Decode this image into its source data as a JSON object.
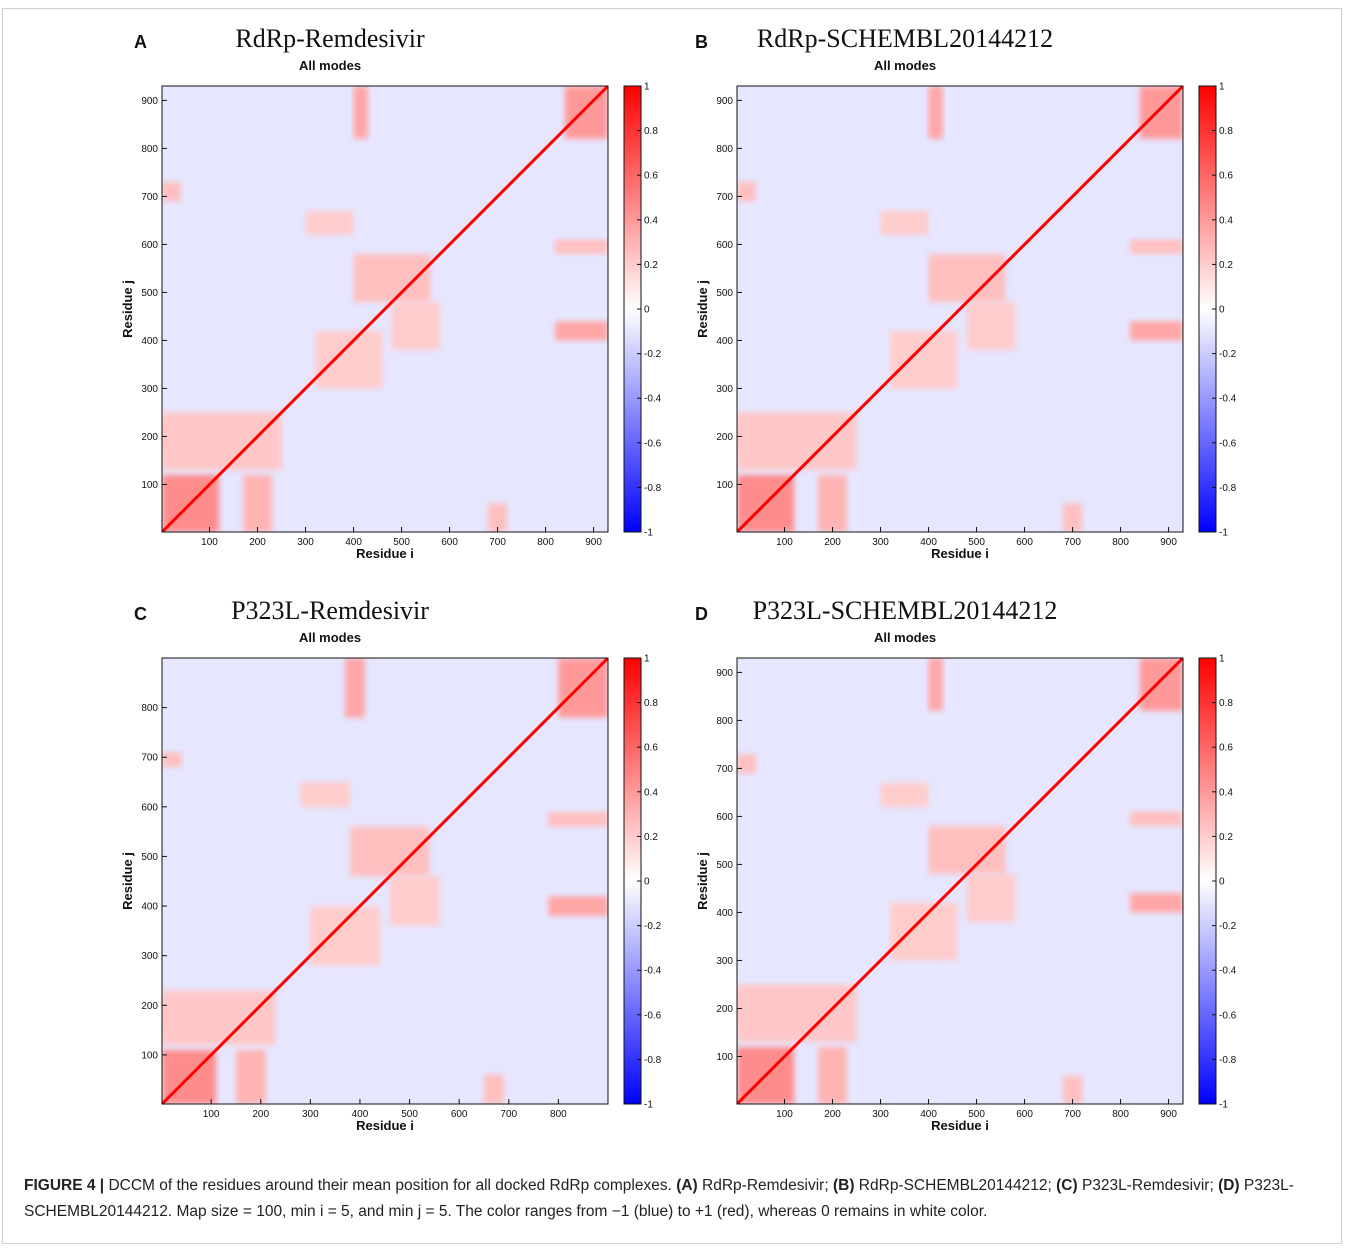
{
  "caption": {
    "figure_label": "FIGURE 4 |",
    "parts": [
      {
        "text": " DCCM of the residues around their mean position for all docked RdRp complexes. ",
        "bold": false
      },
      {
        "text": "(A)",
        "bold": true
      },
      {
        "text": " RdRp-Remdesivir; ",
        "bold": false
      },
      {
        "text": "(B)",
        "bold": true
      },
      {
        "text": " RdRp-SCHEMBL20144212; ",
        "bold": false
      },
      {
        "text": "(C)",
        "bold": true
      },
      {
        "text": " P323L-Remdesivir; ",
        "bold": false
      },
      {
        "text": "(D)",
        "bold": true
      },
      {
        "text": " P323L-SCHEMBL20144212. Map size = 100, min i = 5, and min j = 5. The color ranges from −1 (blue) to +1 (red), whereas 0 remains in white color.",
        "bold": false
      }
    ]
  },
  "colors": {
    "negative": "#0000ff",
    "zero": "#ffffff",
    "positive": "#ff0000"
  },
  "chart_data": [
    {
      "type": "heatmap",
      "panel_letter": "A",
      "title": "RdRp-Remdesivir",
      "subtitle": "All modes",
      "xlabel": "Residue i",
      "ylabel": "Residue j",
      "xlim": [
        1,
        930
      ],
      "ylim": [
        1,
        930
      ],
      "xticks": [
        100,
        200,
        300,
        400,
        500,
        600,
        700,
        800,
        900
      ],
      "yticks": [
        100,
        200,
        300,
        400,
        500,
        600,
        700,
        800,
        900
      ],
      "colorbar": {
        "range": [
          -1,
          1
        ],
        "ticks": [
          -1,
          -0.8,
          -0.6,
          -0.4,
          -0.2,
          0,
          0.2,
          0.4,
          0.6,
          0.8,
          1
        ],
        "tick_labels": [
          "-1",
          "-0.8",
          "-0.6",
          "-0.4",
          "-0.2",
          "0",
          "0.2",
          "0.4",
          "0.6",
          "0.8",
          "1"
        ]
      },
      "diagonal_value": 1,
      "background_value": -0.1,
      "red_regions": [
        {
          "i": [
            1,
            120
          ],
          "j": [
            1,
            120
          ],
          "v": 0.45
        },
        {
          "i": [
            170,
            230
          ],
          "j": [
            1,
            120
          ],
          "v": 0.3
        },
        {
          "i": [
            1,
            120
          ],
          "j": [
            170,
            230
          ],
          "v": 0.3
        },
        {
          "i": [
            1,
            250
          ],
          "j": [
            130,
            250
          ],
          "v": 0.22
        },
        {
          "i": [
            840,
            930
          ],
          "j": [
            820,
            930
          ],
          "v": 0.4
        },
        {
          "i": [
            400,
            430
          ],
          "j": [
            820,
            930
          ],
          "v": 0.35
        },
        {
          "i": [
            820,
            930
          ],
          "j": [
            400,
            440
          ],
          "v": 0.35
        },
        {
          "i": [
            400,
            560
          ],
          "j": [
            480,
            580
          ],
          "v": 0.25
        },
        {
          "i": [
            480,
            580
          ],
          "j": [
            380,
            480
          ],
          "v": 0.2
        },
        {
          "i": [
            320,
            460
          ],
          "j": [
            300,
            420
          ],
          "v": 0.2
        },
        {
          "i": [
            1,
            40
          ],
          "j": [
            690,
            730
          ],
          "v": 0.25
        },
        {
          "i": [
            820,
            930
          ],
          "j": [
            580,
            610
          ],
          "v": 0.25
        },
        {
          "i": [
            300,
            400
          ],
          "j": [
            620,
            670
          ],
          "v": 0.2
        },
        {
          "i": [
            680,
            720
          ],
          "j": [
            1,
            60
          ],
          "v": 0.25
        }
      ]
    },
    {
      "type": "heatmap",
      "panel_letter": "B",
      "title": "RdRp-SCHEMBL20144212",
      "subtitle": "All modes",
      "xlabel": "Residue i",
      "ylabel": "Residue j",
      "xlim": [
        1,
        930
      ],
      "ylim": [
        1,
        930
      ],
      "xticks": [
        100,
        200,
        300,
        400,
        500,
        600,
        700,
        800,
        900
      ],
      "yticks": [
        100,
        200,
        300,
        400,
        500,
        600,
        700,
        800,
        900
      ],
      "colorbar": {
        "range": [
          -1,
          1
        ],
        "ticks": [
          -1,
          -0.8,
          -0.6,
          -0.4,
          -0.2,
          0,
          0.2,
          0.4,
          0.6,
          0.8,
          1
        ],
        "tick_labels": [
          "-1",
          "-0.8",
          "-0.6",
          "-0.4",
          "-0.2",
          "0",
          "0.2",
          "0.4",
          "0.6",
          "0.8",
          "1"
        ]
      },
      "diagonal_value": 1,
      "background_value": -0.1,
      "red_regions": [
        {
          "i": [
            1,
            120
          ],
          "j": [
            1,
            120
          ],
          "v": 0.45
        },
        {
          "i": [
            170,
            230
          ],
          "j": [
            1,
            120
          ],
          "v": 0.3
        },
        {
          "i": [
            1,
            120
          ],
          "j": [
            170,
            230
          ],
          "v": 0.3
        },
        {
          "i": [
            1,
            250
          ],
          "j": [
            130,
            250
          ],
          "v": 0.22
        },
        {
          "i": [
            840,
            930
          ],
          "j": [
            820,
            930
          ],
          "v": 0.4
        },
        {
          "i": [
            400,
            430
          ],
          "j": [
            820,
            930
          ],
          "v": 0.35
        },
        {
          "i": [
            820,
            930
          ],
          "j": [
            400,
            440
          ],
          "v": 0.35
        },
        {
          "i": [
            400,
            560
          ],
          "j": [
            480,
            580
          ],
          "v": 0.25
        },
        {
          "i": [
            480,
            580
          ],
          "j": [
            380,
            480
          ],
          "v": 0.2
        },
        {
          "i": [
            320,
            460
          ],
          "j": [
            300,
            420
          ],
          "v": 0.2
        },
        {
          "i": [
            1,
            40
          ],
          "j": [
            690,
            730
          ],
          "v": 0.25
        },
        {
          "i": [
            820,
            930
          ],
          "j": [
            580,
            610
          ],
          "v": 0.25
        },
        {
          "i": [
            300,
            400
          ],
          "j": [
            620,
            670
          ],
          "v": 0.2
        },
        {
          "i": [
            680,
            720
          ],
          "j": [
            1,
            60
          ],
          "v": 0.25
        }
      ]
    },
    {
      "type": "heatmap",
      "panel_letter": "C",
      "title": "P323L-Remdesivir",
      "subtitle": "All modes",
      "xlabel": "Residue i",
      "ylabel": "Residue j",
      "xlim": [
        1,
        900
      ],
      "ylim": [
        1,
        900
      ],
      "xticks": [
        100,
        200,
        300,
        400,
        500,
        600,
        700,
        800
      ],
      "yticks": [
        100,
        200,
        300,
        400,
        500,
        600,
        700,
        800
      ],
      "colorbar": {
        "range": [
          -1,
          1
        ],
        "ticks": [
          -1,
          -0.8,
          -0.6,
          -0.4,
          -0.2,
          0,
          0.2,
          0.4,
          0.6,
          0.8,
          1
        ],
        "tick_labels": [
          "-1",
          "-0.8",
          "-0.6",
          "-0.4",
          "-0.2",
          "0",
          "0.2",
          "0.4",
          "0.6",
          "0.8",
          "1"
        ]
      },
      "diagonal_value": 1,
      "background_value": -0.1,
      "red_regions": [
        {
          "i": [
            1,
            110
          ],
          "j": [
            1,
            110
          ],
          "v": 0.45
        },
        {
          "i": [
            150,
            210
          ],
          "j": [
            1,
            110
          ],
          "v": 0.3
        },
        {
          "i": [
            1,
            110
          ],
          "j": [
            150,
            210
          ],
          "v": 0.3
        },
        {
          "i": [
            1,
            230
          ],
          "j": [
            120,
            230
          ],
          "v": 0.22
        },
        {
          "i": [
            800,
            900
          ],
          "j": [
            780,
            900
          ],
          "v": 0.4
        },
        {
          "i": [
            370,
            410
          ],
          "j": [
            780,
            900
          ],
          "v": 0.35
        },
        {
          "i": [
            780,
            900
          ],
          "j": [
            380,
            420
          ],
          "v": 0.35
        },
        {
          "i": [
            380,
            540
          ],
          "j": [
            460,
            560
          ],
          "v": 0.25
        },
        {
          "i": [
            460,
            560
          ],
          "j": [
            360,
            460
          ],
          "v": 0.2
        },
        {
          "i": [
            300,
            440
          ],
          "j": [
            280,
            400
          ],
          "v": 0.2
        },
        {
          "i": [
            1,
            40
          ],
          "j": [
            680,
            710
          ],
          "v": 0.25
        },
        {
          "i": [
            780,
            900
          ],
          "j": [
            560,
            590
          ],
          "v": 0.25
        },
        {
          "i": [
            280,
            380
          ],
          "j": [
            600,
            650
          ],
          "v": 0.2
        },
        {
          "i": [
            650,
            690
          ],
          "j": [
            1,
            60
          ],
          "v": 0.25
        }
      ]
    },
    {
      "type": "heatmap",
      "panel_letter": "D",
      "title": "P323L-SCHEMBL20144212",
      "subtitle": "All modes",
      "xlabel": "Residue i",
      "ylabel": "Residue j",
      "xlim": [
        1,
        930
      ],
      "ylim": [
        1,
        930
      ],
      "xticks": [
        100,
        200,
        300,
        400,
        500,
        600,
        700,
        800,
        900
      ],
      "yticks": [
        100,
        200,
        300,
        400,
        500,
        600,
        700,
        800,
        900
      ],
      "colorbar": {
        "range": [
          -1,
          1
        ],
        "ticks": [
          -1,
          -0.8,
          -0.6,
          -0.4,
          -0.2,
          0,
          0.2,
          0.4,
          0.6,
          0.8,
          1
        ],
        "tick_labels": [
          "-1",
          "-0.8",
          "-0.6",
          "-0.4",
          "-0.2",
          "0",
          "0.2",
          "0.4",
          "0.6",
          "0.8",
          "1"
        ]
      },
      "diagonal_value": 1,
      "background_value": -0.1,
      "red_regions": [
        {
          "i": [
            1,
            120
          ],
          "j": [
            1,
            120
          ],
          "v": 0.45
        },
        {
          "i": [
            170,
            230
          ],
          "j": [
            1,
            120
          ],
          "v": 0.3
        },
        {
          "i": [
            1,
            120
          ],
          "j": [
            170,
            230
          ],
          "v": 0.3
        },
        {
          "i": [
            1,
            250
          ],
          "j": [
            130,
            250
          ],
          "v": 0.22
        },
        {
          "i": [
            840,
            930
          ],
          "j": [
            820,
            930
          ],
          "v": 0.4
        },
        {
          "i": [
            400,
            430
          ],
          "j": [
            820,
            930
          ],
          "v": 0.35
        },
        {
          "i": [
            820,
            930
          ],
          "j": [
            400,
            440
          ],
          "v": 0.35
        },
        {
          "i": [
            400,
            560
          ],
          "j": [
            480,
            580
          ],
          "v": 0.25
        },
        {
          "i": [
            480,
            580
          ],
          "j": [
            380,
            480
          ],
          "v": 0.2
        },
        {
          "i": [
            320,
            460
          ],
          "j": [
            300,
            420
          ],
          "v": 0.2
        },
        {
          "i": [
            1,
            40
          ],
          "j": [
            690,
            730
          ],
          "v": 0.25
        },
        {
          "i": [
            820,
            930
          ],
          "j": [
            580,
            610
          ],
          "v": 0.25
        },
        {
          "i": [
            300,
            400
          ],
          "j": [
            620,
            670
          ],
          "v": 0.2
        },
        {
          "i": [
            680,
            720
          ],
          "j": [
            1,
            60
          ],
          "v": 0.25
        }
      ]
    }
  ]
}
